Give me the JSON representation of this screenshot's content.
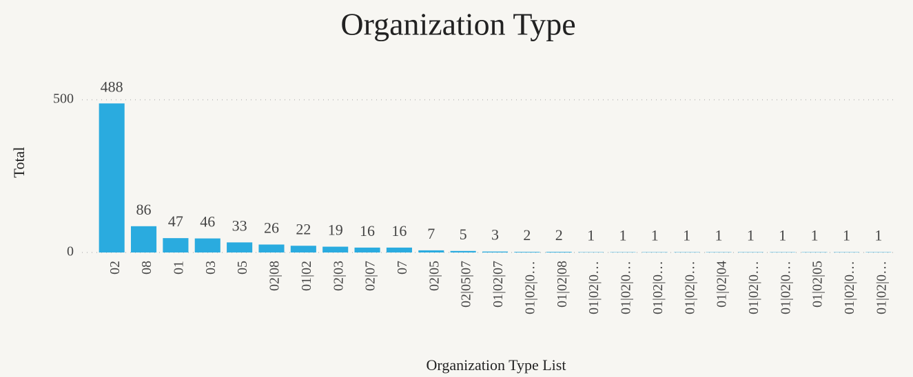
{
  "chart_data": {
    "type": "bar",
    "title": "Organization Type",
    "x_label": "Organization Type List",
    "y_label": "Total",
    "categories": [
      "02",
      "08",
      "01",
      "03",
      "05",
      "02|08",
      "01|02",
      "02|03",
      "02|07",
      "07",
      "02|05",
      "02|05|07",
      "01|02|07",
      "01|02|0…",
      "01|02|08",
      "01|02|0…",
      "01|02|0…",
      "01|02|0…",
      "01|02|0…",
      "01|02|04",
      "01|02|0…",
      "01|02|0…",
      "01|02|05",
      "01|02|0…",
      "01|02|0…"
    ],
    "values": [
      488,
      86,
      47,
      46,
      33,
      26,
      22,
      19,
      16,
      16,
      7,
      5,
      3,
      2,
      2,
      1,
      1,
      1,
      1,
      1,
      1,
      1,
      1,
      1,
      1
    ],
    "color": "#2aabdf",
    "ylim": [
      0,
      500
    ],
    "yticks": [
      0,
      500
    ],
    "grid": true
  }
}
